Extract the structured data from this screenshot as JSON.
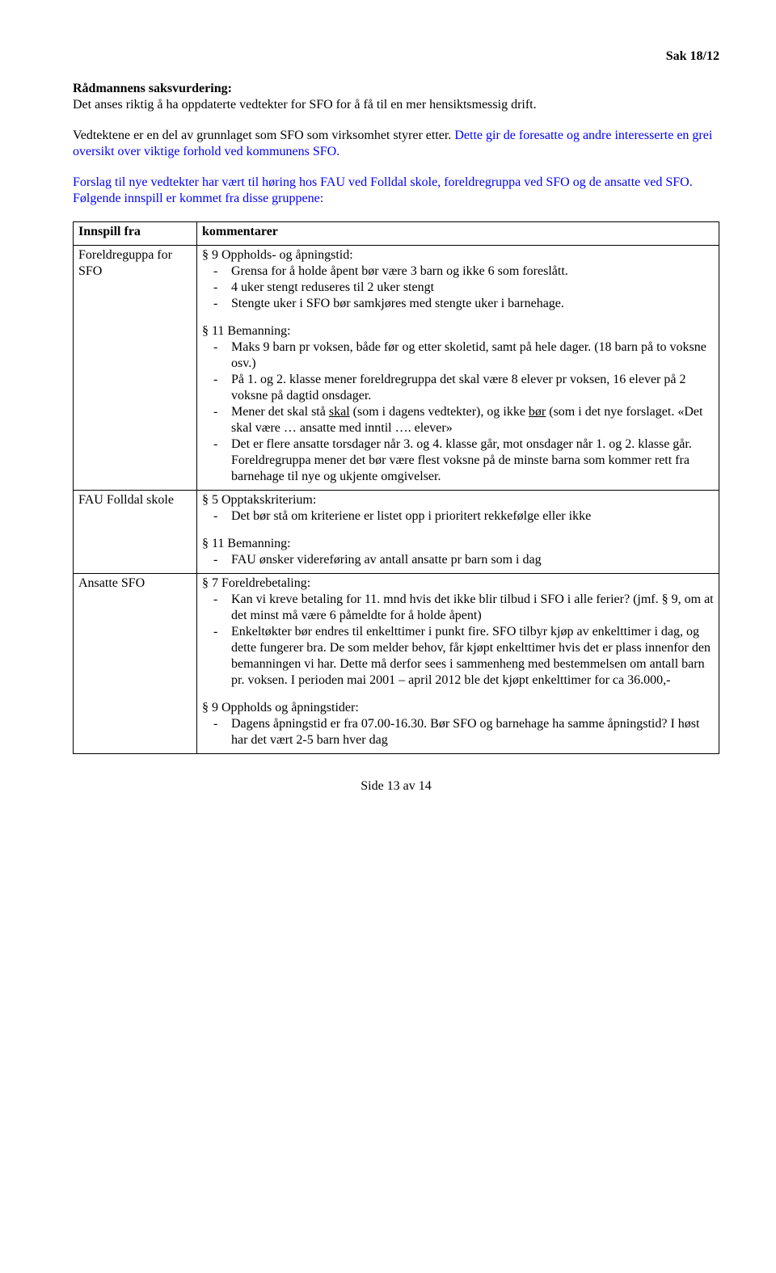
{
  "header": {
    "sak": "Sak 18/12"
  },
  "intro": {
    "title": "Rådmannens saksvurdering:",
    "p1": "Det anses riktig å ha oppdaterte vedtekter for SFO for å få til en mer hensiktsmessig drift.",
    "p2a": "Vedtektene er en del av grunnlaget som SFO som virksomhet styrer etter. ",
    "p2b": "Dette gir de foresatte og andre interesserte en grei oversikt over viktige forhold ved kommunens SFO.",
    "p3": "Forslag til nye vedtekter har vært til høring hos FAU ved Folldal skole, foreldregruppa ved SFO og de ansatte ved SFO. Følgende innspill er kommet fra disse gruppene:"
  },
  "table": {
    "head": {
      "c1": "Innspill fra",
      "c2": "kommentarer"
    },
    "row1": {
      "from": "Foreldreguppa for SFO",
      "s9_label": "§ 9 Oppholds- og åpningstid:",
      "s9_items": [
        "Grensa for å holde åpent bør være 3 barn og ikke 6 som foreslått.",
        "4 uker stengt reduseres til 2 uker stengt",
        "Stengte uker i SFO bør samkjøres med stengte uker i barnehage."
      ],
      "s11_label": "§ 11 Bemanning:",
      "s11_item1": "Maks 9 barn pr voksen, både før og etter skoletid, samt på hele dager. (18 barn på to voksne osv.)",
      "s11_item2": "På 1. og 2. klasse mener foreldregruppa det skal være 8 elever pr voksen, 16 elever på 2 voksne på dagtid onsdager.",
      "s11_item3_a": "Mener det skal stå ",
      "s11_item3_u1": "skal",
      "s11_item3_b": " (som i dagens vedtekter), og ikke ",
      "s11_item3_u2": "bør",
      "s11_item3_c": " (som i det nye forslaget. «Det skal være … ansatte med inntil …. elever»",
      "s11_item4": "Det er flere ansatte torsdager når 3. og 4. klasse går, mot onsdager når 1. og 2. klasse går. Foreldregruppa mener det bør være flest voksne på de minste barna som kommer rett fra barnehage til nye og ukjente omgivelser."
    },
    "row2": {
      "from": "FAU Folldal skole",
      "s5_label": "§ 5 Opptakskriterium:",
      "s5_item": "Det bør stå om kriteriene er listet opp i prioritert rekkefølge eller ikke",
      "s11_label": "§ 11 Bemanning:",
      "s11_item": "FAU ønsker videreføring av antall ansatte pr barn som i dag"
    },
    "row3": {
      "from": "Ansatte SFO",
      "s7_label": "§ 7 Foreldrebetaling:",
      "s7_item1": "Kan vi kreve betaling for 11. mnd hvis det ikke blir tilbud i SFO i alle ferier? (jmf. § 9, om at det minst må være 6 påmeldte for å holde åpent)",
      "s7_item2": "Enkeltøkter bør endres til enkelttimer i punkt fire. SFO tilbyr kjøp av enkelttimer i dag, og dette fungerer bra. De som melder behov, får kjøpt enkelttimer hvis det er plass innenfor den bemanningen vi har. Dette må derfor sees i sammenheng med bestemmelsen om antall barn pr. voksen. I perioden mai 2001 – april 2012 ble det kjøpt enkelttimer for ca 36.000,-",
      "s9_label": "§ 9 Oppholds og åpningstider:",
      "s9_item": "Dagens åpningstid er fra 07.00-16.30. Bør SFO og barnehage ha samme åpningstid? I høst har det vært 2-5 barn hver dag"
    }
  },
  "footer": {
    "page": "Side 13 av 14"
  }
}
